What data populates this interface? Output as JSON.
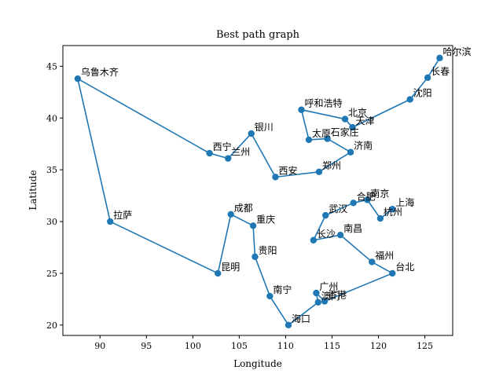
{
  "chart_data": {
    "type": "line",
    "title": "Best path graph",
    "xlabel": "Longitude",
    "ylabel": "Latitude",
    "xlim": [
      86.0,
      128.0
    ],
    "ylim": [
      19.0,
      47.0
    ],
    "xticks": [
      90,
      95,
      100,
      105,
      110,
      115,
      120,
      125
    ],
    "yticks": [
      20,
      25,
      30,
      35,
      40,
      45
    ],
    "grid": false,
    "line_color": "#1f77b4",
    "marker": "circle",
    "cities": [
      {
        "name": "哈尔滨",
        "x": 126.6,
        "y": 45.8
      },
      {
        "name": "长春",
        "x": 125.3,
        "y": 43.9
      },
      {
        "name": "沈阳",
        "x": 123.4,
        "y": 41.8
      },
      {
        "name": "天津",
        "x": 117.2,
        "y": 39.1
      },
      {
        "name": "北京",
        "x": 116.4,
        "y": 39.9
      },
      {
        "name": "呼和浩特",
        "x": 111.7,
        "y": 40.8
      },
      {
        "name": "太原",
        "x": 112.5,
        "y": 37.9
      },
      {
        "name": "石家庄",
        "x": 114.5,
        "y": 38.0
      },
      {
        "name": "济南",
        "x": 117.0,
        "y": 36.7
      },
      {
        "name": "郑州",
        "x": 113.6,
        "y": 34.8
      },
      {
        "name": "西安",
        "x": 108.9,
        "y": 34.3
      },
      {
        "name": "银川",
        "x": 106.3,
        "y": 38.5
      },
      {
        "name": "兰州",
        "x": 103.8,
        "y": 36.1
      },
      {
        "name": "西宁",
        "x": 101.8,
        "y": 36.6
      },
      {
        "name": "乌鲁木齐",
        "x": 87.6,
        "y": 43.8
      },
      {
        "name": "拉萨",
        "x": 91.1,
        "y": 30.0
      },
      {
        "name": "昆明",
        "x": 102.7,
        "y": 25.0
      },
      {
        "name": "成都",
        "x": 104.1,
        "y": 30.7
      },
      {
        "name": "重庆",
        "x": 106.5,
        "y": 29.6
      },
      {
        "name": "贵阳",
        "x": 106.7,
        "y": 26.6
      },
      {
        "name": "南宁",
        "x": 108.3,
        "y": 22.8
      },
      {
        "name": "海口",
        "x": 110.3,
        "y": 20.0
      },
      {
        "name": "澳门",
        "x": 113.5,
        "y": 22.2
      },
      {
        "name": "广州",
        "x": 113.3,
        "y": 23.1
      },
      {
        "name": "香港",
        "x": 114.2,
        "y": 22.3
      },
      {
        "name": "台北",
        "x": 121.5,
        "y": 25.0
      },
      {
        "name": "福州",
        "x": 119.3,
        "y": 26.1
      },
      {
        "name": "南昌",
        "x": 115.9,
        "y": 28.7
      },
      {
        "name": "长沙",
        "x": 113.0,
        "y": 28.2
      },
      {
        "name": "武汉",
        "x": 114.3,
        "y": 30.6
      },
      {
        "name": "合肥",
        "x": 117.3,
        "y": 31.8
      },
      {
        "name": "南京",
        "x": 118.8,
        "y": 32.1
      },
      {
        "name": "杭州",
        "x": 120.2,
        "y": 30.3
      },
      {
        "name": "上海",
        "x": 121.5,
        "y": 31.2
      }
    ]
  }
}
